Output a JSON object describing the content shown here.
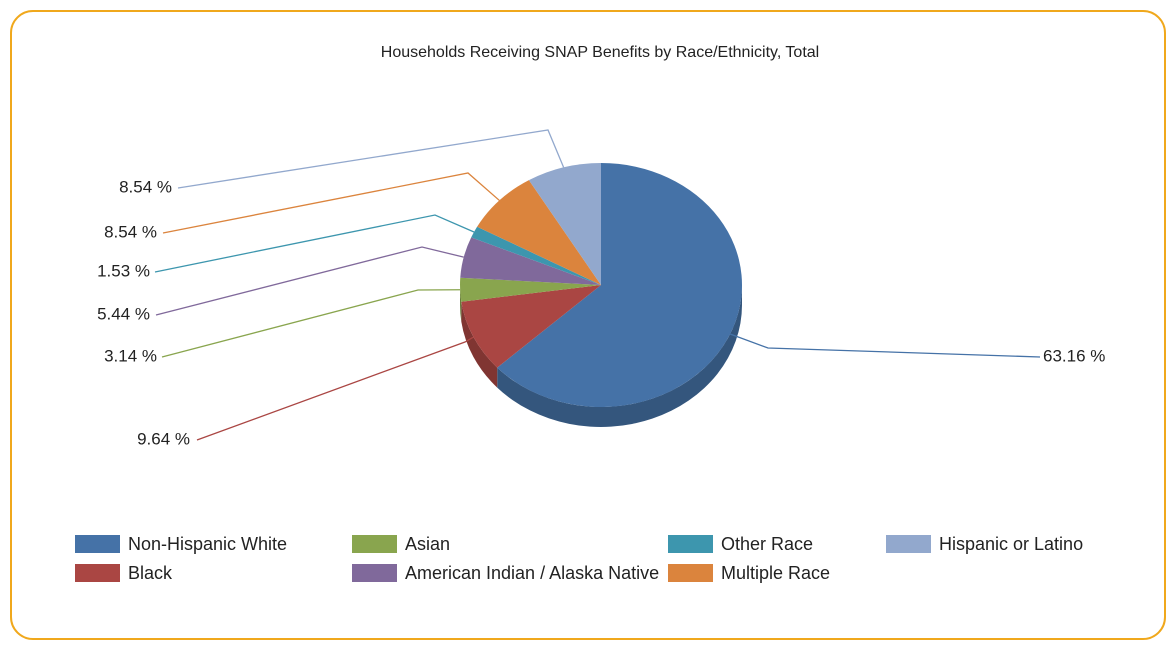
{
  "chart_data": {
    "type": "pie",
    "title": "Households Receiving SNAP Benefits by Race/Ethnicity, Total",
    "categories": [
      "Non-Hispanic White",
      "Black",
      "Asian",
      "American Indian / Alaska Native",
      "Other Race",
      "Multiple Race",
      "Hispanic or Latino"
    ],
    "values": [
      63.16,
      9.64,
      3.14,
      5.44,
      1.53,
      8.54,
      8.54
    ],
    "value_labels": [
      "63.16 %",
      "9.64 %",
      "3.14 %",
      "5.44 %",
      "1.53 %",
      "8.54 %",
      "8.54 %"
    ],
    "colors": [
      "#4572a7",
      "#aa4643",
      "#89a54e",
      "#80699b",
      "#3d96ae",
      "#db843d",
      "#92a8cd"
    ]
  }
}
